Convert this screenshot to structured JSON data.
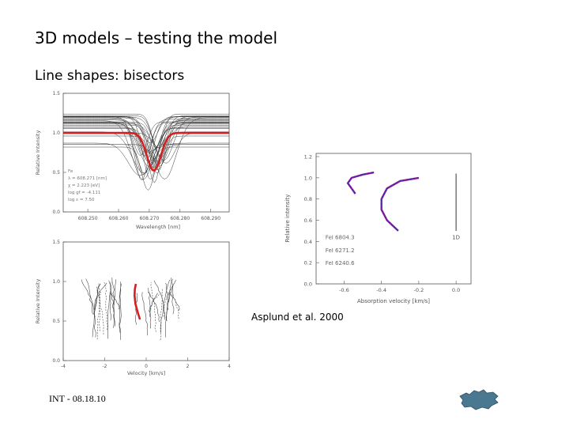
{
  "slide": {
    "title": "3D models – testing the model",
    "subtitle": "Line shapes: bisectors",
    "credit": "Asplund et al. 2000",
    "footer": "INT - 08.18.10"
  },
  "colors": {
    "highlight": "#d42020",
    "model_lines": "#3a3a3a",
    "bisector_obs": "#8a1e9e",
    "bisector_model": "#2a2aa8",
    "logo": "#4a7890"
  },
  "chart_data": [
    {
      "type": "line",
      "panel": "top-left",
      "xlabel": "Wavelength [nm]",
      "ylabel": "Relative Intensity",
      "xticks": [
        "608.250",
        "608.260",
        "608.270",
        "608.280",
        "608.290"
      ],
      "yticks": [
        "0.0",
        "0.5",
        "1.0",
        "1.5"
      ],
      "xlim": [
        608.242,
        608.296
      ],
      "ylim": [
        0,
        1.5
      ],
      "annotations": [
        "Fe",
        "λ = 608.271 [nm]",
        "χ = 2.223 [eV]",
        "log gf = -4.111",
        "log ε = 7.50"
      ],
      "highlight_profile": {
        "center": 608.2715,
        "depth": 0.48,
        "width": 0.0032
      }
    },
    {
      "type": "line",
      "panel": "bottom-left",
      "xlabel": "Velocity [km/s]",
      "ylabel": "Relative Intensity",
      "xticks": [
        "-4",
        "-2",
        "0",
        "2",
        "4"
      ],
      "yticks": [
        "0.0",
        "0.5",
        "1.0",
        "1.5"
      ],
      "xlim": [
        -4,
        4
      ],
      "ylim": [
        0,
        1.5
      ],
      "highlight_bisector": {
        "x": [
          -0.3,
          -0.42,
          -0.52,
          -0.56,
          -0.55,
          -0.5
        ],
        "y": [
          0.52,
          0.62,
          0.72,
          0.82,
          0.9,
          0.97
        ]
      }
    },
    {
      "type": "line",
      "panel": "right",
      "xlabel": "Absorption velocity [km/s]",
      "ylabel": "Relative intensity",
      "xticks": [
        "-0.6",
        "-0.4",
        "-0.2",
        "0.0"
      ],
      "yticks": [
        "0.0",
        "0.2",
        "0.4",
        "0.6",
        "0.8",
        "1.0",
        "1.2"
      ],
      "xlim": [
        -0.75,
        0.08
      ],
      "ylim": [
        0,
        1.23
      ],
      "line_labels": [
        "FeI 6804.3",
        "FeI 6271.2",
        "FeI 6240.6"
      ],
      "series": [
        {
          "name": "FeI 6271.2",
          "x": [
            -0.54,
            -0.56,
            -0.58,
            -0.56,
            -0.5,
            -0.44
          ],
          "y": [
            0.85,
            0.9,
            0.95,
            1.0,
            1.03,
            1.05
          ]
        },
        {
          "name": "FeI 6240.6",
          "x": [
            -0.31,
            -0.37,
            -0.4,
            -0.4,
            -0.37,
            -0.3,
            -0.2
          ],
          "y": [
            0.5,
            0.6,
            0.7,
            0.8,
            0.9,
            0.97,
            1.0
          ]
        }
      ],
      "reference": {
        "label": "1D",
        "x": 0.0,
        "y": [
          0.5,
          1.04
        ]
      }
    }
  ]
}
